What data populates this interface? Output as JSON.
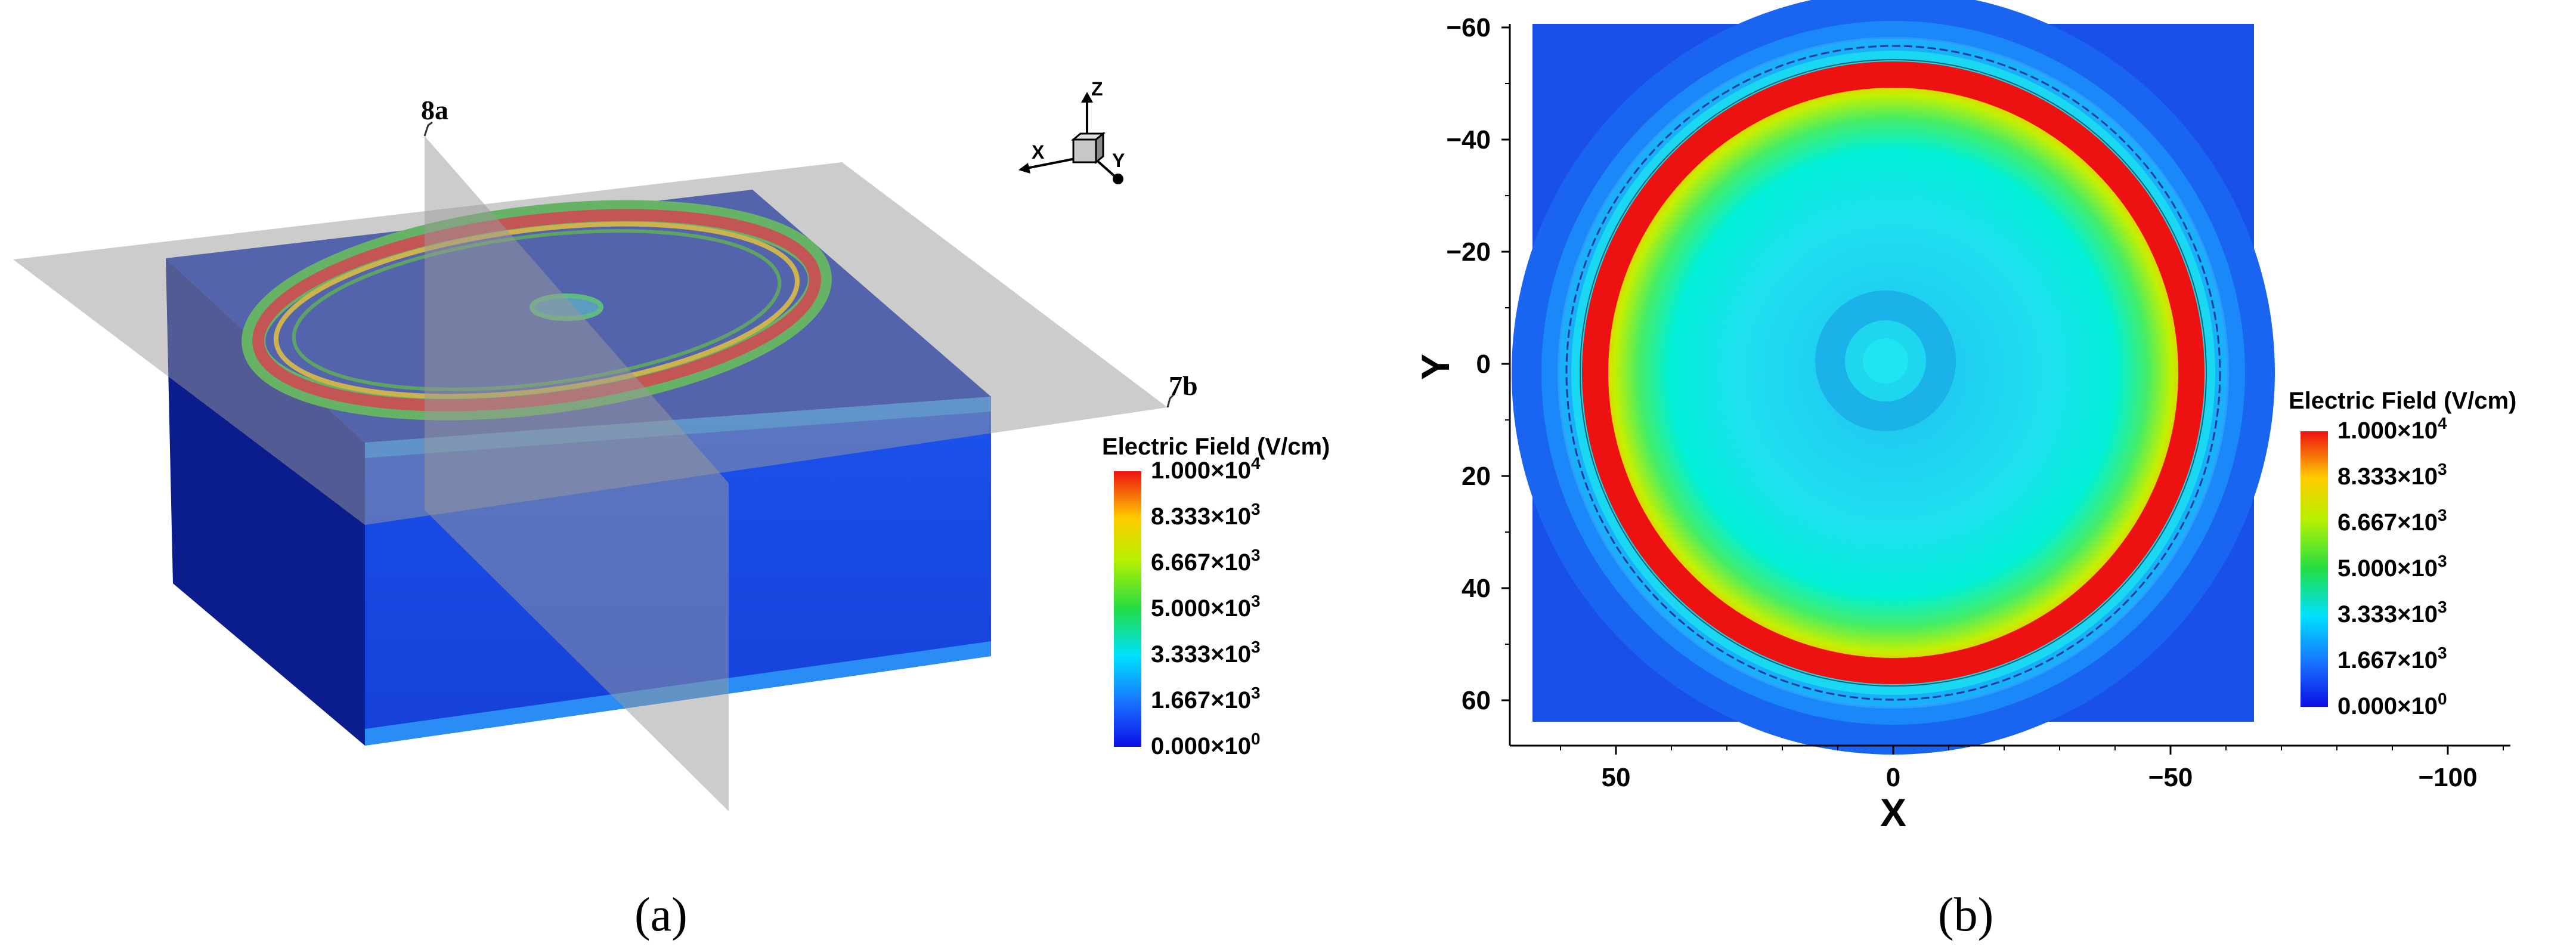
{
  "panel_a": {
    "caption": "(a)",
    "cut_labels": {
      "vertical_plane": "8a",
      "horizontal_plane": "7b"
    },
    "axes_triad": {
      "z": "Z",
      "x": "X",
      "y": "Y"
    },
    "legend": {
      "title": "Electric Field (V/cm)",
      "entries": [
        {
          "mantissa": "1.000×10",
          "exp": "4"
        },
        {
          "mantissa": "8.333×10",
          "exp": "3"
        },
        {
          "mantissa": "6.667×10",
          "exp": "3"
        },
        {
          "mantissa": "5.000×10",
          "exp": "3"
        },
        {
          "mantissa": "3.333×10",
          "exp": "3"
        },
        {
          "mantissa": "1.667×10",
          "exp": "3"
        },
        {
          "mantissa": "0.000×10",
          "exp": "0"
        }
      ]
    }
  },
  "panel_b": {
    "caption": "(b)",
    "xlabel": "X",
    "ylabel": "Y",
    "x_ticks": [
      "50",
      "0",
      "−50",
      "−100"
    ],
    "y_ticks": [
      "−60",
      "−40",
      "−20",
      "0",
      "20",
      "40",
      "60"
    ],
    "legend": {
      "title": "Electric Field (V/cm)",
      "entries": [
        {
          "mantissa": "1.000×10",
          "exp": "4"
        },
        {
          "mantissa": "8.333×10",
          "exp": "3"
        },
        {
          "mantissa": "6.667×10",
          "exp": "3"
        },
        {
          "mantissa": "5.000×10",
          "exp": "3"
        },
        {
          "mantissa": "3.333×10",
          "exp": "3"
        },
        {
          "mantissa": "1.667×10",
          "exp": "3"
        },
        {
          "mantissa": "0.000×10",
          "exp": "0"
        }
      ]
    }
  },
  "colors": {
    "low": "#0a2cff",
    "mid": "#00e5ff",
    "green": "#33dd33",
    "yellow": "#ffee00",
    "high": "#ee1111"
  }
}
